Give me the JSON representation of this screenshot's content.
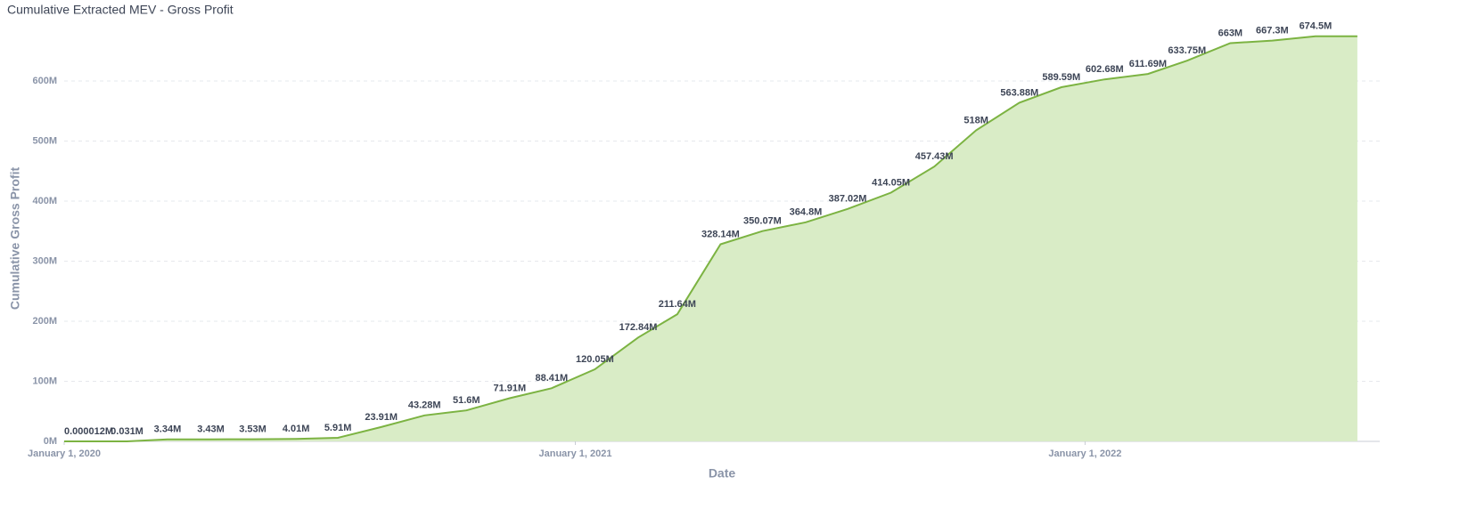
{
  "chart_data": {
    "type": "area",
    "title": "Cumulative Extracted MEV - Gross Profit",
    "x_label": "Date",
    "y_label": "Cumulative Gross Profit",
    "x": [
      "2020-01-01",
      "2020-02-15",
      "2020-03-15",
      "2020-04-15",
      "2020-05-15",
      "2020-06-15",
      "2020-07-15",
      "2020-08-15",
      "2020-09-15",
      "2020-10-15",
      "2020-11-15",
      "2020-12-15",
      "2021-01-15",
      "2021-02-15",
      "2021-03-15",
      "2021-04-15",
      "2021-05-15",
      "2021-06-15",
      "2021-07-15",
      "2021-08-15",
      "2021-09-15",
      "2021-10-15",
      "2021-11-15",
      "2021-12-15",
      "2022-01-15",
      "2022-02-15",
      "2022-03-15",
      "2022-04-15",
      "2022-05-15",
      "2022-06-15",
      "2022-07-15"
    ],
    "series": [
      {
        "name": "Cumulative Gross Profit",
        "color": "#7cb342",
        "fill": "#d9ecc6",
        "values": [
          1.2e-05,
          0.031,
          3.34,
          3.43,
          3.53,
          4.01,
          5.91,
          23.91,
          43.28,
          51.6,
          71.91,
          88.41,
          120.05,
          172.84,
          211.64,
          328.14,
          350.07,
          364.8,
          387.02,
          414.05,
          457.43,
          518,
          563.88,
          589.59,
          602.68,
          611.69,
          633.75,
          663,
          667.3,
          674.5,
          674.5
        ],
        "value_labels": [
          "0.000012M",
          "0.031M",
          "3.34M",
          "3.43M",
          "3.53M",
          "4.01M",
          "5.91M",
          "23.91M",
          "43.28M",
          "51.6M",
          "71.91M",
          "88.41M",
          "120.05M",
          "172.84M",
          "211.64M",
          "328.14M",
          "350.07M",
          "364.8M",
          "387.02M",
          "414.05M",
          "457.43M",
          "518M",
          "563.88M",
          "589.59M",
          "602.68M",
          "611.69M",
          "633.75M",
          "663M",
          "667.3M",
          "674.5M",
          null
        ]
      }
    ],
    "xlim": [
      "2020-01-01",
      "2022-07-31"
    ],
    "xticks": [
      {
        "value": "2020-01-01",
        "label": "January 1, 2020"
      },
      {
        "value": "2021-01-01",
        "label": "January 1, 2021"
      },
      {
        "value": "2022-01-01",
        "label": "January 1, 2022"
      }
    ],
    "ylim": [
      0,
      680
    ],
    "yticks": [
      {
        "value": 0,
        "label": "0M"
      },
      {
        "value": 100,
        "label": "100M"
      },
      {
        "value": 200,
        "label": "200M"
      },
      {
        "value": 300,
        "label": "300M"
      },
      {
        "value": 400,
        "label": "400M"
      },
      {
        "value": 500,
        "label": "500M"
      },
      {
        "value": 600,
        "label": "600M"
      }
    ],
    "grid": true
  }
}
